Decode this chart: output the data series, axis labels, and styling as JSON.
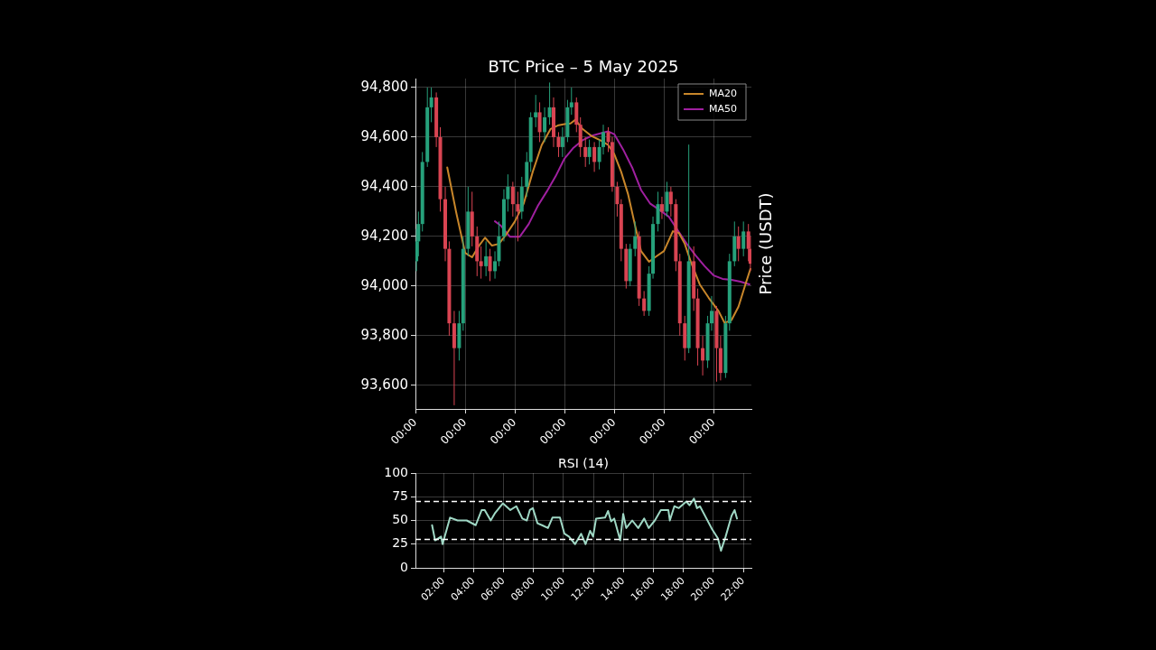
{
  "chart_data": [
    {
      "type": "candlestick",
      "title": "BTC Price – 5 May 2025",
      "ylabel": "Price (USDT)",
      "x": [
        "--01-02",
        "--01-04",
        "--01-08",
        "--01-13",
        "--01-17",
        "--01-22",
        "--01-26",
        "--01-31",
        "--02-04",
        "--02-09",
        "--02-14",
        "--02-18",
        "--02-23",
        "--02-27",
        "--03-04",
        "--03-08",
        "--03-13",
        "--03-17",
        "--03-22",
        "--03-26",
        "--03-31",
        "--04-04",
        "--04-09",
        "--04-14",
        "--04-18",
        "--04-23",
        "--04-27",
        "--05-02",
        "--05-06",
        "--05-11",
        "--05-16",
        "--05-20",
        "--05-25",
        "--05-29",
        "--06-03",
        "--06-07",
        "--06-12",
        "--06-16",
        "--06-21",
        "--06-25",
        "--06-30",
        "--07-05",
        "--07-09",
        "--07-14",
        "--07-18",
        "--07-23",
        "--07-27",
        "--08-01",
        "--08-05",
        "--08-10",
        "--08-14",
        "--08-19",
        "--08-24",
        "--08-28",
        "--09-02",
        "--09-06",
        "--09-11",
        "--09-15",
        "--09-20",
        "--09-24",
        "--09-29",
        "--10-03",
        "--10-08",
        "--10-12",
        "--10-17",
        "--10-22",
        "--10-26",
        "--10-31",
        "--11-04",
        "--11-09",
        "--11-13",
        "--11-18",
        "--11-22",
        "--11-27",
        "--12-02",
        "--12-04"
      ],
      "ohlc": [
        [
          94100,
          94230,
          94060,
          94180
        ],
        [
          94180,
          94300,
          94120,
          94250
        ],
        [
          94250,
          94540,
          94220,
          94500
        ],
        [
          94500,
          94800,
          94480,
          94720
        ],
        [
          94720,
          94800,
          94660,
          94760
        ],
        [
          94760,
          94780,
          94560,
          94600
        ],
        [
          94600,
          94640,
          94300,
          94350
        ],
        [
          94350,
          94400,
          94100,
          94150
        ],
        [
          94150,
          94180,
          93800,
          93850
        ],
        [
          93850,
          93900,
          93520,
          93750
        ],
        [
          93750,
          93900,
          93700,
          93850
        ],
        [
          93850,
          94200,
          93820,
          94150
        ],
        [
          94150,
          94400,
          94120,
          94300
        ],
        [
          94300,
          94380,
          94160,
          94200
        ],
        [
          94200,
          94240,
          94040,
          94100
        ],
        [
          94100,
          94160,
          94030,
          94080
        ],
        [
          94080,
          94180,
          94040,
          94120
        ],
        [
          94120,
          94150,
          94020,
          94060
        ],
        [
          94060,
          94140,
          94030,
          94100
        ],
        [
          94100,
          94260,
          94080,
          94200
        ],
        [
          94200,
          94390,
          94180,
          94350
        ],
        [
          94350,
          94450,
          94300,
          94400
        ],
        [
          94400,
          94420,
          94280,
          94330
        ],
        [
          94330,
          94380,
          94180,
          94300
        ],
        [
          94300,
          94440,
          94270,
          94400
        ],
        [
          94400,
          94540,
          94360,
          94500
        ],
        [
          94500,
          94700,
          94460,
          94680
        ],
        [
          94680,
          94770,
          94640,
          94700
        ],
        [
          94700,
          94740,
          94580,
          94620
        ],
        [
          94620,
          94720,
          94580,
          94680
        ],
        [
          94680,
          94820,
          94650,
          94720
        ],
        [
          94720,
          94760,
          94560,
          94600
        ],
        [
          94600,
          94620,
          94520,
          94560
        ],
        [
          94560,
          94640,
          94520,
          94600
        ],
        [
          94600,
          94750,
          94580,
          94720
        ],
        [
          94720,
          94800,
          94690,
          94740
        ],
        [
          94740,
          94760,
          94620,
          94650
        ],
        [
          94650,
          94680,
          94520,
          94560
        ],
        [
          94560,
          94600,
          94480,
          94520
        ],
        [
          94520,
          94590,
          94490,
          94560
        ],
        [
          94560,
          94580,
          94460,
          94500
        ],
        [
          94500,
          94590,
          94470,
          94560
        ],
        [
          94560,
          94650,
          94530,
          94620
        ],
        [
          94620,
          94640,
          94540,
          94580
        ],
        [
          94580,
          94600,
          94380,
          94400
        ],
        [
          94400,
          94420,
          94280,
          94330
        ],
        [
          94330,
          94350,
          94100,
          94150
        ],
        [
          94150,
          94170,
          93990,
          94020
        ],
        [
          94020,
          94170,
          94000,
          94150
        ],
        [
          94150,
          94260,
          94120,
          94200
        ],
        [
          94200,
          94220,
          93920,
          93950
        ],
        [
          93950,
          93980,
          93880,
          93900
        ],
        [
          93900,
          94080,
          93880,
          94050
        ],
        [
          94050,
          94280,
          94030,
          94250
        ],
        [
          94250,
          94380,
          94220,
          94330
        ],
        [
          94330,
          94360,
          94270,
          94300
        ],
        [
          94300,
          94420,
          94280,
          94380
        ],
        [
          94380,
          94400,
          94280,
          94330
        ],
        [
          94330,
          94350,
          94060,
          94100
        ],
        [
          94100,
          94130,
          93800,
          93850
        ],
        [
          93850,
          93880,
          93700,
          93750
        ],
        [
          93750,
          94570,
          93730,
          94100
        ],
        [
          94100,
          94160,
          93900,
          93950
        ],
        [
          93950,
          93990,
          93680,
          93750
        ],
        [
          93750,
          93800,
          93640,
          93700
        ],
        [
          93700,
          93880,
          93670,
          93850
        ],
        [
          93850,
          93960,
          93820,
          93900
        ],
        [
          93900,
          93920,
          93615,
          93750
        ],
        [
          93750,
          93800,
          93620,
          93650
        ],
        [
          93650,
          93880,
          93630,
          93850
        ],
        [
          93850,
          94130,
          93820,
          94100
        ],
        [
          94100,
          94260,
          94080,
          94200
        ],
        [
          94200,
          94240,
          94100,
          94150
        ],
        [
          94150,
          94260,
          94120,
          94220
        ],
        [
          94220,
          94250,
          94100,
          94150
        ],
        [
          94150,
          94200,
          94060,
          94090
        ]
      ],
      "colors": [
        "#26a17b",
        "#26a17b",
        "#26a17b",
        "#26a17b",
        "#26a17b",
        "#d94452",
        "#d94452",
        "#d94452",
        "#d94452",
        "#d94452",
        "#26a17b",
        "#26a17b",
        "#26a17b",
        "#d94452",
        "#d94452",
        "#d94452",
        "#26a17b",
        "#d94452",
        "#26a17b",
        "#26a17b",
        "#26a17b",
        "#26a17b",
        "#d94452",
        "#d94452",
        "#26a17b",
        "#26a17b",
        "#26a17b",
        "#26a17b",
        "#d94452",
        "#26a17b",
        "#26a17b",
        "#d94452",
        "#d94452",
        "#26a17b",
        "#26a17b",
        "#26a17b",
        "#d94452",
        "#d94452",
        "#d94452",
        "#26a17b",
        "#d94452",
        "#26a17b",
        "#26a17b",
        "#d94452",
        "#d94452",
        "#d94452",
        "#d94452",
        "#d94452",
        "#26a17b",
        "#26a17b",
        "#d94452",
        "#d94452",
        "#26a17b",
        "#26a17b",
        "#26a17b",
        "#d94452",
        "#26a17b",
        "#d94452",
        "#d94452",
        "#d94452",
        "#d94452",
        "#26a17b",
        "#d94452",
        "#d94452",
        "#d94452",
        "#26a17b",
        "#26a17b",
        "#d94452",
        "#d94452",
        "#26a17b",
        "#26a17b",
        "#26a17b",
        "#d94452",
        "#26a17b",
        "#d94452",
        "#d94452"
      ],
      "series": [
        {
          "name": "MA20",
          "type": "line",
          "color": "#c8862a",
          "x": [
            "--02-02",
            "--02-11",
            "--02-20",
            "--02-27",
            "--03-06",
            "--03-12",
            "--03-19",
            "--03-26",
            "--04-02",
            "--04-11",
            "--04-20",
            "--04-29",
            "--05-08",
            "--05-17",
            "--05-25",
            "--05-31",
            "--06-06",
            "--06-11",
            "--06-18",
            "--06-27",
            "--07-06",
            "--07-14",
            "--07-20",
            "--07-27",
            "--08-03",
            "--08-10",
            "--08-16",
            "--08-24",
            "--08-30",
            "--09-08",
            "--09-17",
            "--09-23",
            "--09-29",
            "--10-05",
            "--10-14",
            "--10-23",
            "--11-02",
            "--11-08",
            "--11-15",
            "--11-22",
            "--11-29",
            "--12-04"
          ],
          "values": [
            94478,
            94297,
            94134,
            94116,
            94163,
            94195,
            94163,
            94170,
            94206,
            94260,
            94333,
            94460,
            94568,
            94633,
            94648,
            94652,
            94655,
            94670,
            94633,
            94605,
            94587,
            94568,
            94532,
            94460,
            94369,
            94243,
            94141,
            94098,
            94116,
            94141,
            94221,
            94214,
            94170,
            94098,
            94007,
            93953,
            93899,
            93852,
            93863,
            93917,
            94007,
            94069
          ]
        },
        {
          "name": "MA50",
          "type": "line",
          "color": "#a020a0",
          "x": [
            "--03-22",
            "--03-28",
            "--04-06",
            "--04-16",
            "--04-25",
            "--05-04",
            "--05-13",
            "--05-22",
            "--05-31",
            "--06-09",
            "--06-18",
            "--06-27",
            "--07-06",
            "--07-14",
            "--07-20",
            "--07-29",
            "--08-07",
            "--08-16",
            "--08-25",
            "--09-03",
            "--09-13",
            "--09-22",
            "--10-01",
            "--10-10",
            "--10-19",
            "--10-28",
            "--11-06",
            "--11-15",
            "--11-24",
            "--12-03"
          ],
          "values": [
            94261,
            94243,
            94199,
            94199,
            94250,
            94322,
            94380,
            94442,
            94514,
            94557,
            94587,
            94605,
            94615,
            94623,
            94612,
            94550,
            94478,
            94387,
            94333,
            94308,
            94279,
            94224,
            94170,
            94123,
            94080,
            94043,
            94029,
            94025,
            94018,
            94007
          ]
        }
      ],
      "xlim": [
        "--01-01",
        "--12-05"
      ],
      "xticks": [
        {
          "value": "--01-01T00:00",
          "label": "00:00"
        },
        {
          "value": "--02-20T00:00",
          "label": "00:00"
        },
        {
          "value": "--04-11T00:00",
          "label": "00:00"
        },
        {
          "value": "--05-31T00:00",
          "label": "00:00"
        },
        {
          "value": "--07-20T00:00",
          "label": "00:00"
        },
        {
          "value": "--09-08T00:00",
          "label": "00:00"
        },
        {
          "value": "--10-28T00:00",
          "label": "00:00"
        }
      ],
      "ylim": [
        93505,
        94836
      ],
      "yticks": [
        {
          "value": 93600,
          "label": "93,600"
        },
        {
          "value": 93800,
          "label": "93,800"
        },
        {
          "value": 94000,
          "label": "94,000"
        },
        {
          "value": 94200,
          "label": "94,200"
        },
        {
          "value": 94400,
          "label": "94,400"
        },
        {
          "value": 94600,
          "label": "94,600"
        },
        {
          "value": 94800,
          "label": "94,800"
        }
      ],
      "grid": true,
      "legend": "top right",
      "marker": "none"
    },
    {
      "type": "line",
      "title": "RSI (14)",
      "series": [
        {
          "color": "#9fd8c5",
          "x": [
            1.24,
            1.44,
            1.84,
            1.94,
            2.44,
            2.94,
            3.55,
            4.15,
            4.55,
            4.75,
            5.15,
            5.45,
            5.96,
            6.46,
            6.86,
            7.26,
            7.56,
            7.76,
            7.96,
            8.27,
            8.57,
            8.97,
            9.27,
            9.77,
            10.07,
            10.37,
            10.78,
            11.18,
            11.48,
            11.78,
            11.98,
            12.18,
            12.78,
            12.98,
            13.18,
            13.39,
            13.79,
            13.99,
            14.19,
            14.59,
            14.99,
            15.39,
            15.69,
            16.1,
            16.5,
            17.0,
            17.1,
            17.4,
            17.7,
            18.2,
            18.41,
            18.71,
            18.91,
            19.11,
            19.51,
            19.91,
            20.31,
            20.51,
            20.82,
            21.22,
            21.42,
            21.58
          ],
          "values": [
            45,
            29,
            33,
            25,
            53,
            50,
            50,
            45,
            61,
            61,
            50,
            58,
            68,
            61,
            65,
            52,
            50,
            61,
            63,
            47,
            45,
            42,
            53,
            53,
            36,
            33,
            25,
            36,
            25,
            39,
            33,
            52,
            53,
            60,
            49,
            52,
            29,
            57,
            42,
            50,
            42,
            52,
            42,
            50,
            61,
            61,
            50,
            65,
            63,
            70,
            66,
            73,
            63,
            65,
            53,
            41,
            31,
            18,
            33,
            55,
            61,
            52
          ]
        }
      ],
      "xlim": [
        0.13,
        22.54
      ],
      "xticks": [
        {
          "value": 2,
          "label": "02:00"
        },
        {
          "value": 4,
          "label": "04:00"
        },
        {
          "value": 6,
          "label": "06:00"
        },
        {
          "value": 8,
          "label": "08:00"
        },
        {
          "value": 10,
          "label": "10:00"
        },
        {
          "value": 12,
          "label": "12:00"
        },
        {
          "value": 14,
          "label": "14:00"
        },
        {
          "value": 16,
          "label": "16:00"
        },
        {
          "value": 18,
          "label": "18:00"
        },
        {
          "value": 20,
          "label": "20:00"
        },
        {
          "value": 22,
          "label": "22:00"
        }
      ],
      "ylim": [
        0,
        100
      ],
      "yticks": [
        0,
        25,
        50,
        75,
        100
      ],
      "ref_lines": [
        {
          "axis": "y",
          "value": 70,
          "line_style": "dashed"
        },
        {
          "axis": "y",
          "value": 30,
          "line_style": "dashed"
        }
      ],
      "grid": true,
      "marker": "none"
    }
  ]
}
